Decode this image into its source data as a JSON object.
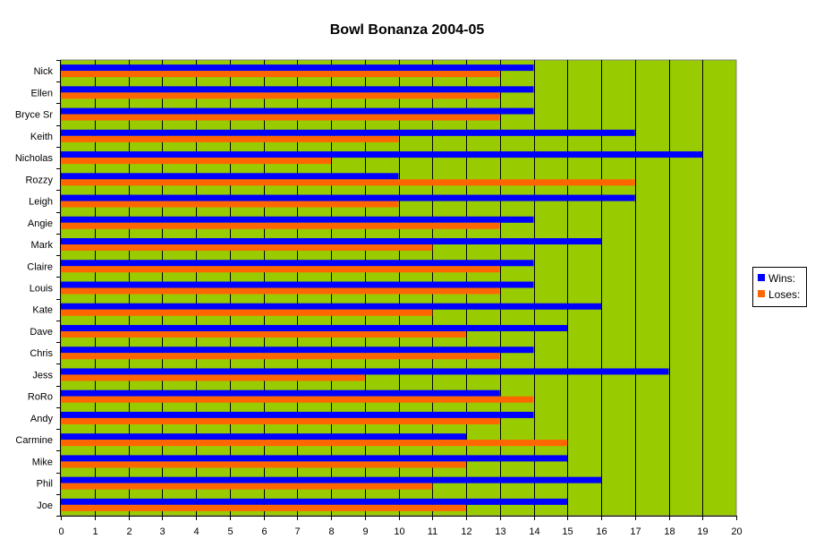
{
  "chart_data": {
    "type": "bar",
    "orientation": "horizontal",
    "title": "Bowl Bonanza 2004-05",
    "xlabel": "",
    "ylabel": "",
    "xlim": [
      0,
      20
    ],
    "x_ticks": [
      0,
      1,
      2,
      3,
      4,
      5,
      6,
      7,
      8,
      9,
      10,
      11,
      12,
      13,
      14,
      15,
      16,
      17,
      18,
      19,
      20
    ],
    "grid": true,
    "legend_position": "right",
    "plot_background": "#99CC00",
    "categories": [
      "Nick",
      "Ellen",
      "Bryce Sr",
      "Keith",
      "Nicholas",
      "Rozzy",
      "Leigh",
      "Angie",
      "Mark",
      "Claire",
      "Louis",
      "Kate",
      "Dave",
      "Chris",
      "Jess",
      "RoRo",
      "Andy",
      "Carmine",
      "Mike",
      "Phil",
      "Joe"
    ],
    "series": [
      {
        "name": "Wins:",
        "color": "#0000FF",
        "values": [
          14,
          14,
          14,
          17,
          19,
          10,
          17,
          14,
          16,
          14,
          14,
          16,
          15,
          14,
          18,
          13,
          14,
          12,
          15,
          16,
          15
        ]
      },
      {
        "name": "Loses:",
        "color": "#FF6600",
        "values": [
          13,
          13,
          13,
          10,
          8,
          17,
          10,
          13,
          11,
          13,
          13,
          11,
          12,
          13,
          9,
          14,
          13,
          15,
          12,
          11,
          12
        ]
      }
    ]
  }
}
